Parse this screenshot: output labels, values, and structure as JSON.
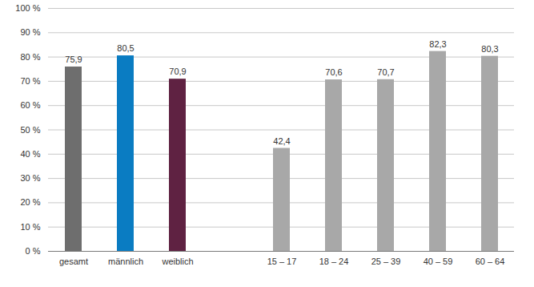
{
  "chart_data": {
    "type": "bar",
    "categories": [
      "gesamt",
      "männlich",
      "weiblich",
      null,
      "15 – 17",
      "18 – 24",
      "25 – 39",
      "40 – 59",
      "60 – 64"
    ],
    "values": [
      75.9,
      80.5,
      70.9,
      null,
      42.4,
      70.6,
      70.7,
      82.3,
      80.3
    ],
    "value_labels": [
      "75,9",
      "80,5",
      "70,9",
      null,
      "42,4",
      "70,6",
      "70,7",
      "82,3",
      "80,3"
    ],
    "colors": [
      "#6e6e6e",
      "#0a7cc2",
      "#5f2242",
      null,
      "#a8a8a8",
      "#a8a8a8",
      "#a8a8a8",
      "#a8a8a8",
      "#a8a8a8"
    ],
    "ylim": [
      0,
      100
    ],
    "yticks": [
      {
        "value": 0,
        "label": "0 %"
      },
      {
        "value": 10,
        "label": "10 %"
      },
      {
        "value": 20,
        "label": "20 %"
      },
      {
        "value": 30,
        "label": "30 %"
      },
      {
        "value": 40,
        "label": "40 %"
      },
      {
        "value": 50,
        "label": "50 %"
      },
      {
        "value": 60,
        "label": "60 %"
      },
      {
        "value": 70,
        "label": "70 %"
      },
      {
        "value": 80,
        "label": "80 %"
      },
      {
        "value": 90,
        "label": "90 %"
      },
      {
        "value": 100,
        "label": "100 %"
      }
    ],
    "grid": true,
    "data_labels": true
  }
}
